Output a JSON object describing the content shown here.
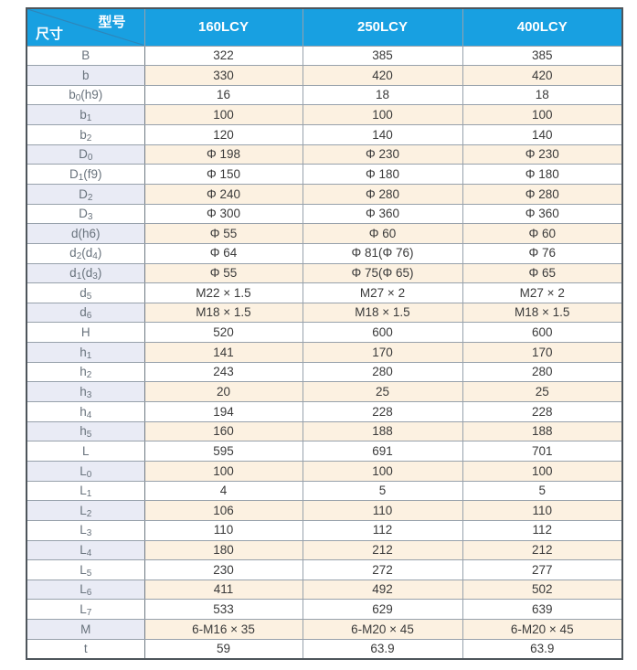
{
  "table": {
    "header": {
      "corner_top": "型号",
      "corner_bottom": "尺寸",
      "columns": [
        "160LCY",
        "250LCY",
        "400LCY"
      ]
    },
    "rows": [
      {
        "label": "B",
        "values": [
          "322",
          "385",
          "385"
        ]
      },
      {
        "label": "b",
        "values": [
          "330",
          "420",
          "420"
        ]
      },
      {
        "label": "b~0~(h9)",
        "values": [
          "16",
          "18",
          "18"
        ]
      },
      {
        "label": "b~1~",
        "values": [
          "100",
          "100",
          "100"
        ]
      },
      {
        "label": "b~2~",
        "values": [
          "120",
          "140",
          "140"
        ]
      },
      {
        "label": "D~0~",
        "values": [
          "Φ 198",
          "Φ 230",
          "Φ 230"
        ]
      },
      {
        "label": "D~1~(f9)",
        "values": [
          "Φ 150",
          "Φ 180",
          "Φ 180"
        ]
      },
      {
        "label": "D~2~",
        "values": [
          "Φ 240",
          "Φ 280",
          "Φ 280"
        ]
      },
      {
        "label": "D~3~",
        "values": [
          "Φ 300",
          "Φ 360",
          "Φ 360"
        ]
      },
      {
        "label": "d(h6)",
        "values": [
          "Φ 55",
          "Φ 60",
          "Φ 60"
        ]
      },
      {
        "label": "d~2~(d~4~)",
        "values": [
          "Φ 64",
          "Φ 81(Φ 76)",
          "Φ 76"
        ]
      },
      {
        "label": "d~1~(d~3~)",
        "values": [
          "Φ 55",
          "Φ 75(Φ 65)",
          "Φ 65"
        ]
      },
      {
        "label": "d~5~",
        "values": [
          "M22 × 1.5",
          "M27 × 2",
          "M27 × 2"
        ]
      },
      {
        "label": "d~6~",
        "values": [
          "M18 × 1.5",
          "M18 × 1.5",
          "M18 × 1.5"
        ]
      },
      {
        "label": "H",
        "values": [
          "520",
          "600",
          "600"
        ]
      },
      {
        "label": "h~1~",
        "values": [
          "141",
          "170",
          "170"
        ]
      },
      {
        "label": "h~2~",
        "values": [
          "243",
          "280",
          "280"
        ]
      },
      {
        "label": "h~3~",
        "values": [
          "20",
          "25",
          "25"
        ]
      },
      {
        "label": "h~4~",
        "values": [
          "194",
          "228",
          "228"
        ]
      },
      {
        "label": "h~5~",
        "values": [
          "160",
          "188",
          "188"
        ]
      },
      {
        "label": "L",
        "values": [
          "595",
          "691",
          "701"
        ]
      },
      {
        "label": "L~0~",
        "values": [
          "100",
          "100",
          "100"
        ]
      },
      {
        "label": "L~1~",
        "values": [
          "4",
          "5",
          "5"
        ]
      },
      {
        "label": "L~2~",
        "values": [
          "106",
          "110",
          "110"
        ]
      },
      {
        "label": "L~3~",
        "values": [
          "110",
          "112",
          "112"
        ]
      },
      {
        "label": "L~4~",
        "values": [
          "180",
          "212",
          "212"
        ]
      },
      {
        "label": "L~5~",
        "values": [
          "230",
          "272",
          "277"
        ]
      },
      {
        "label": "L~6~",
        "values": [
          "411",
          "492",
          "502"
        ]
      },
      {
        "label": "L~7~",
        "values": [
          "533",
          "629",
          "639"
        ]
      },
      {
        "label": "M",
        "values": [
          "6-M16 × 35",
          "6-M20 × 45",
          "6-M20 × 45"
        ]
      },
      {
        "label": "t",
        "values": [
          "59",
          "63.9",
          "63.9"
        ]
      }
    ]
  },
  "colors": {
    "header_bg": "#18a0e1",
    "stripe_label_bg": "#e9ebf5",
    "stripe_value_bg": "#fcf1e1",
    "grid_border": "#97a1ab",
    "outer_border": "#4e555b",
    "header_text": "#ffffff",
    "label_text": "#68727c",
    "value_text": "#3a3a3a"
  }
}
